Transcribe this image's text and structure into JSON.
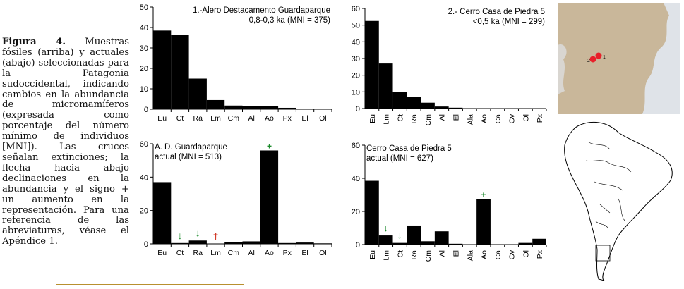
{
  "caption": {
    "label": "Figura 4.",
    "text": "Muestras fósiles (arriba) y actuales (abajo) seleccionadas para la Patagonia sudoccidental, indicando cambios en la abundancia de micromamíferos (expresada como porcentaje del número mínimo de individuos [MNI]). Las cruces señalan extinciones; la flecha hacia abajo declinaciones en la abundancia y el signo + un aumento en la representación. Para una referencia de las abreviaturas, véase el Apéndice 1."
  },
  "map": {
    "site_marker_labels": [
      "2",
      "1"
    ],
    "colors": {
      "land": "#c9b79a",
      "water": "#dfe3e8",
      "site": "#e8202a"
    }
  },
  "colors": {
    "bar": "#000000",
    "arrow": "#1a8a2a",
    "plus": "#1a8a2a",
    "cross": "#d23b2a"
  },
  "chart_data": [
    {
      "type": "bar",
      "title": "1.-Alero Destacamento Guardaparque",
      "subtitle": "0,8-0,3 ka (MNI = 375)",
      "categories": [
        "Eu",
        "Ct",
        "Ra",
        "Lm",
        "Cm",
        "Al",
        "Ao",
        "Px",
        "El",
        "Ol"
      ],
      "values": [
        38.5,
        36.5,
        15,
        4.5,
        1.8,
        1.5,
        1.5,
        0.7,
        0.3,
        0.3
      ],
      "ylim": [
        0,
        50
      ],
      "yticks": [
        0,
        10,
        20,
        30,
        40,
        50
      ],
      "label_orientation": "horizontal",
      "markers": []
    },
    {
      "type": "bar",
      "title": "2.- Cerro Casa de Piedra 5",
      "subtitle": "<0,5 ka (MNI = 299)",
      "categories": [
        "Eu",
        "Lm",
        "Ct",
        "Ra",
        "Cm",
        "Al",
        "El",
        "Ala",
        "Ao",
        "Ca",
        "Gv",
        "Ol",
        "Px"
      ],
      "values": [
        52.5,
        27,
        10,
        7,
        3.5,
        1.2,
        0.5,
        0,
        0,
        0,
        0,
        0,
        0
      ],
      "ylim": [
        0,
        60
      ],
      "yticks": [
        0,
        10,
        20,
        30,
        40,
        50,
        60
      ],
      "label_orientation": "vertical",
      "markers": []
    },
    {
      "type": "bar",
      "title": "A. D. Guardaparque",
      "subtitle": "actual (MNI = 513)",
      "categories": [
        "Eu",
        "Ct",
        "Ra",
        "Lm",
        "Cm",
        "Al",
        "Ao",
        "Px",
        "El",
        "Ol"
      ],
      "values": [
        37,
        0.5,
        2,
        0,
        1,
        1.5,
        56,
        0.5,
        0.8,
        0.3
      ],
      "ylim": [
        0,
        60
      ],
      "yticks": [
        0,
        20,
        40,
        60
      ],
      "label_orientation": "horizontal",
      "markers": [
        {
          "category": "Ct",
          "symbol": "↓",
          "kind": "arrow"
        },
        {
          "category": "Ra",
          "symbol": "↓",
          "kind": "arrow"
        },
        {
          "category": "Lm",
          "symbol": "†",
          "kind": "cross"
        },
        {
          "category": "Ao",
          "symbol": "+",
          "kind": "plus"
        }
      ]
    },
    {
      "type": "bar",
      "title": "Cerro Casa de Piedra 5",
      "subtitle": "actual (MNI = 627)",
      "categories": [
        "Eu",
        "Lm",
        "Ct",
        "Ra",
        "Cm",
        "Al",
        "El",
        "Ala",
        "Ao",
        "Ca",
        "Gv",
        "Ol",
        "Px"
      ],
      "values": [
        38.5,
        5.5,
        1,
        11.5,
        2,
        8,
        0.5,
        0,
        27.5,
        0,
        0,
        1,
        3.5
      ],
      "ylim": [
        0,
        60
      ],
      "yticks": [
        0,
        20,
        40,
        60
      ],
      "label_orientation": "vertical",
      "markers": [
        {
          "category": "Lm",
          "symbol": "↓",
          "kind": "arrow"
        },
        {
          "category": "Ct",
          "symbol": "↓",
          "kind": "arrow"
        },
        {
          "category": "Ao",
          "symbol": "+",
          "kind": "plus"
        }
      ]
    }
  ]
}
